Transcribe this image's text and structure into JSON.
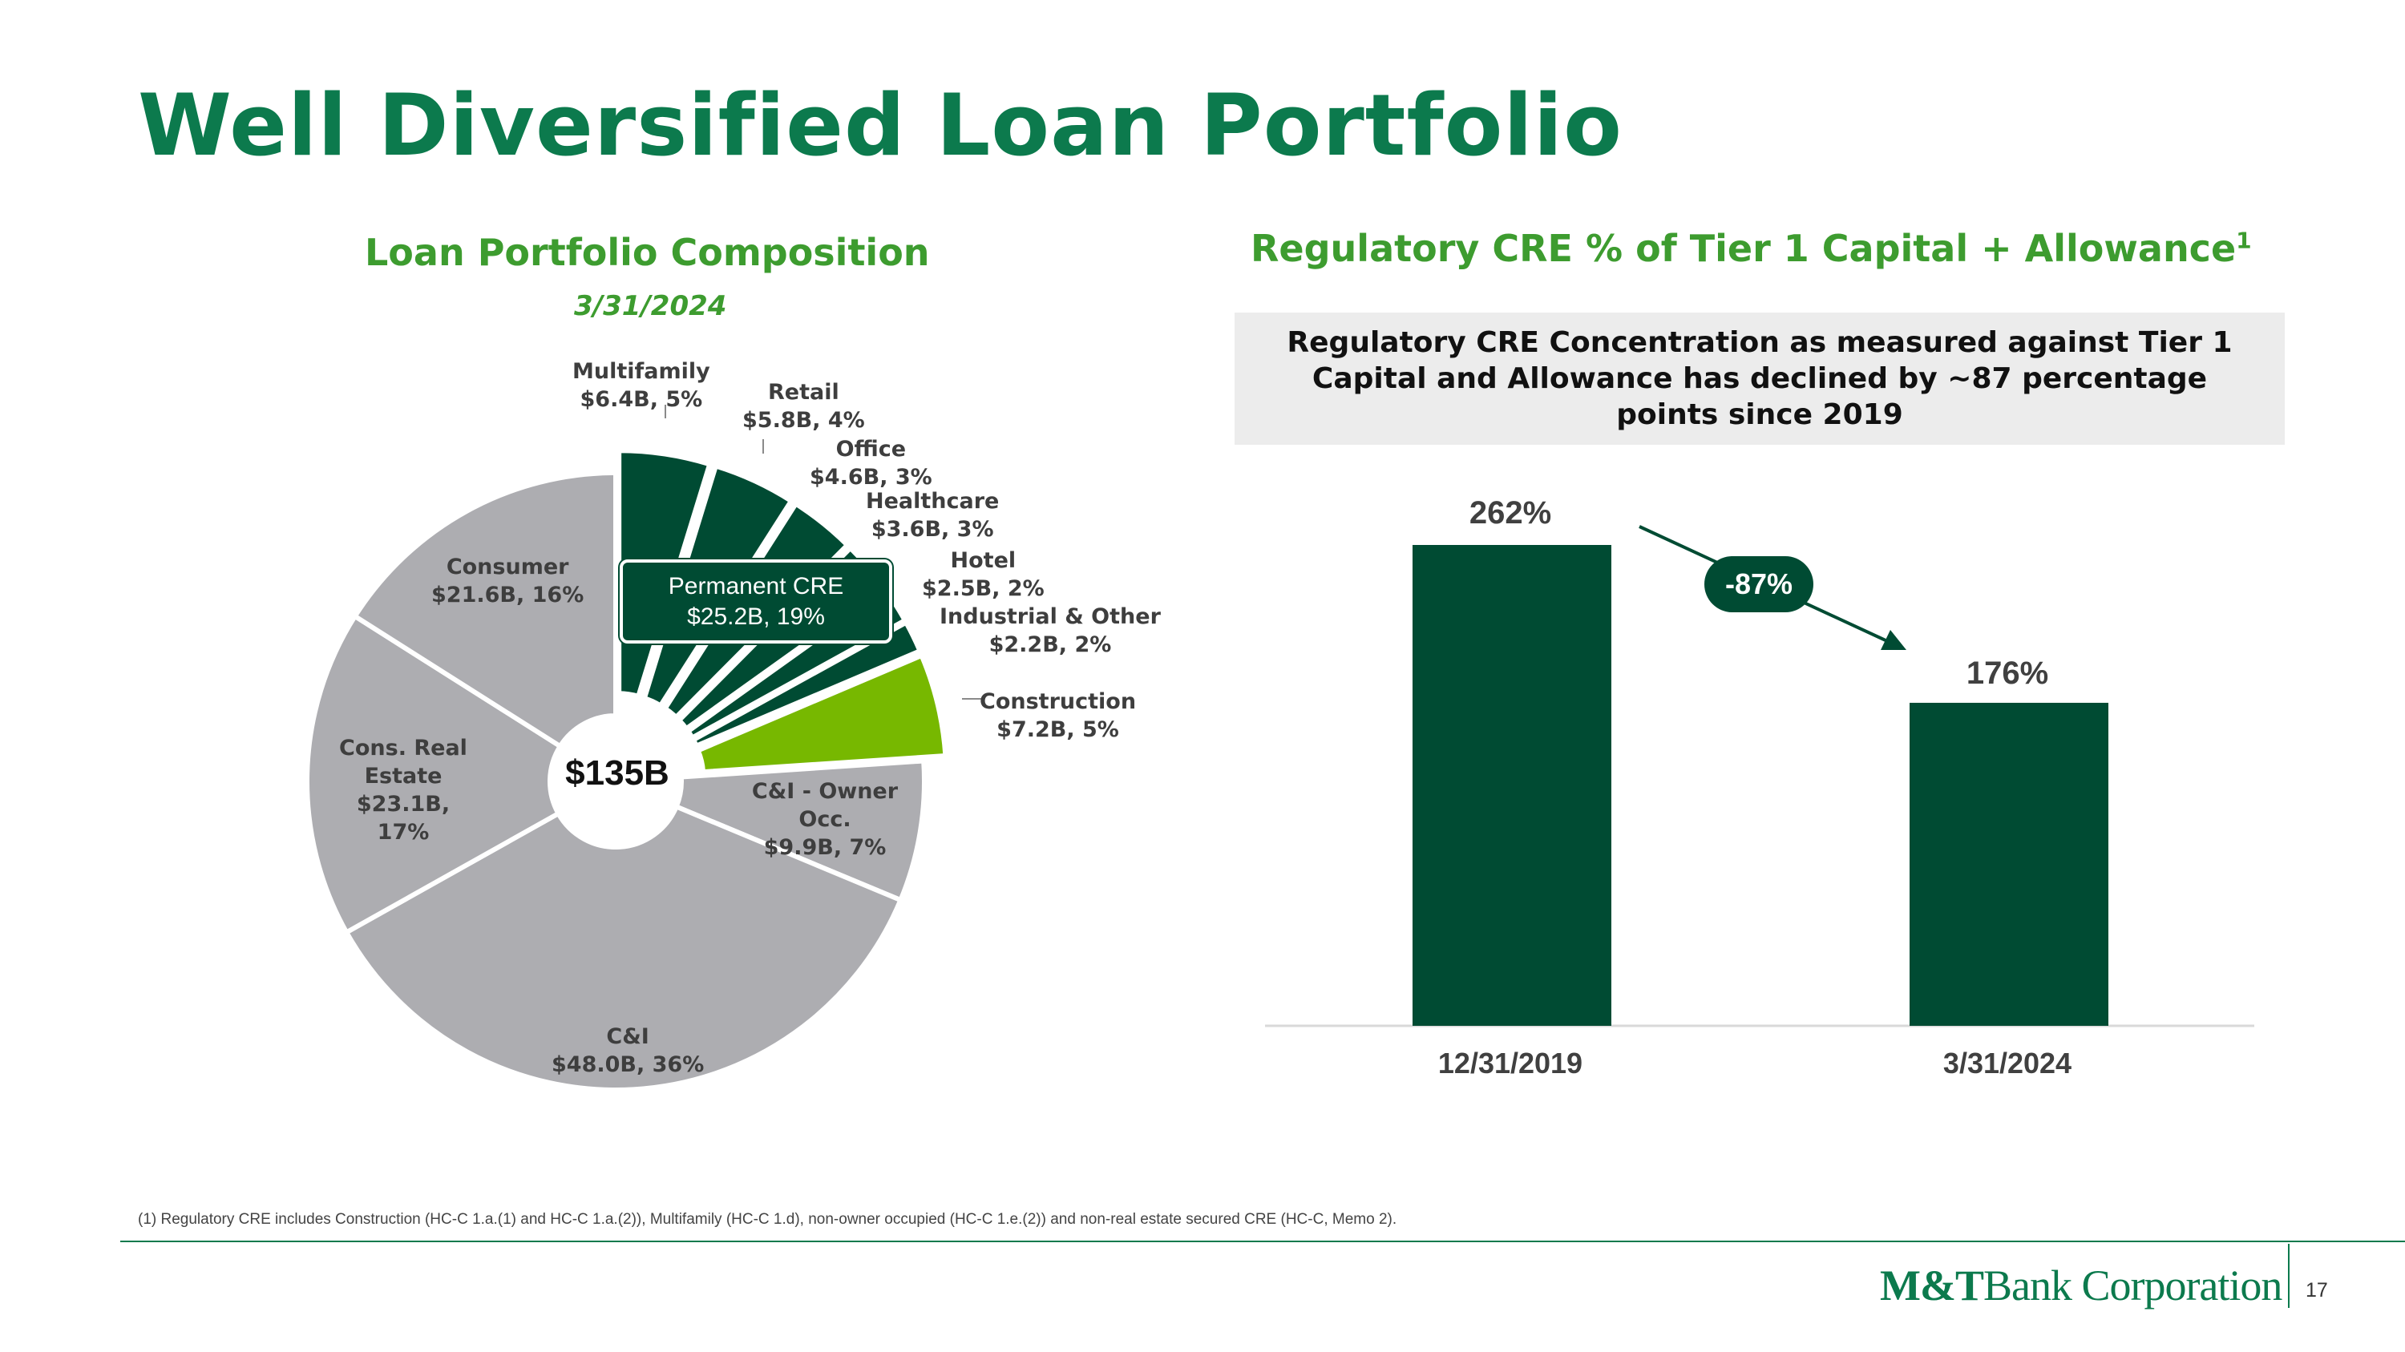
{
  "title": "Well Diversified Loan Portfolio",
  "left_panel": {
    "title": "Loan Portfolio Composition",
    "date": "3/31/2024"
  },
  "right_panel": {
    "title": "Regulatory CRE % of Tier 1 Capital + Allowance",
    "title_sup": "1",
    "callout": "Regulatory CRE Concentration as measured against Tier 1 Capital and Allowance has declined by ~87 percentage points since 2019"
  },
  "colors": {
    "dark_green": "#004b33",
    "lime_green": "#77b800",
    "gray": "#adadb1",
    "brand_green": "#0c7a4d"
  },
  "chart_data": [
    {
      "type": "pie",
      "title": "Loan Portfolio Composition",
      "center_label": "$135B",
      "group_label": {
        "name": "Permanent CRE",
        "value": "$25.2B, 19%"
      },
      "slices": [
        {
          "name": "Multifamily",
          "value": 6.4,
          "pct": 5,
          "label": "$6.4B, 5%",
          "group": "Permanent CRE"
        },
        {
          "name": "Retail",
          "value": 5.8,
          "pct": 4,
          "label": "$5.8B, 4%",
          "group": "Permanent CRE"
        },
        {
          "name": "Office",
          "value": 4.6,
          "pct": 3,
          "label": "$4.6B, 3%",
          "group": "Permanent CRE"
        },
        {
          "name": "Healthcare",
          "value": 3.6,
          "pct": 3,
          "label": "$3.6B, 3%",
          "group": "Permanent CRE"
        },
        {
          "name": "Hotel",
          "value": 2.5,
          "pct": 2,
          "label": "$2.5B, 2%",
          "group": "Permanent CRE"
        },
        {
          "name": "Industrial & Other",
          "value": 2.2,
          "pct": 2,
          "label": "$2.2B, 2%",
          "group": "Permanent CRE"
        },
        {
          "name": "Construction",
          "value": 7.2,
          "pct": 5,
          "label": "$7.2B, 5%"
        },
        {
          "name": "C&I - Owner Occ.",
          "value": 9.9,
          "pct": 7,
          "label": "$9.9B, 7%"
        },
        {
          "name": "C&I",
          "value": 48.0,
          "pct": 36,
          "label": "$48.0B, 36%"
        },
        {
          "name": "Cons. Real Estate",
          "value": 23.1,
          "pct": 17,
          "label": "$23.1B, 17%"
        },
        {
          "name": "Consumer",
          "value": 21.6,
          "pct": 16,
          "label": "$21.6B, 16%"
        }
      ]
    },
    {
      "type": "bar",
      "title": "Regulatory CRE % of Tier 1 Capital + Allowance",
      "categories": [
        "12/31/2019",
        "3/31/2024"
      ],
      "values": [
        262,
        176
      ],
      "value_labels": [
        "262%",
        "176%"
      ],
      "change_label": "-87%",
      "ylim": [
        0,
        300
      ]
    }
  ],
  "footnote": "(1) Regulatory CRE includes Construction (HC-C 1.a.(1) and HC-C 1.a.(2)), Multifamily (HC-C 1.d), non-owner occupied (HC-C 1.e.(2)) and  non-real estate secured CRE (HC-C, Memo 2).",
  "logo": {
    "bold": "M&T",
    "rest": "Bank Corporation"
  },
  "page_number": "17"
}
